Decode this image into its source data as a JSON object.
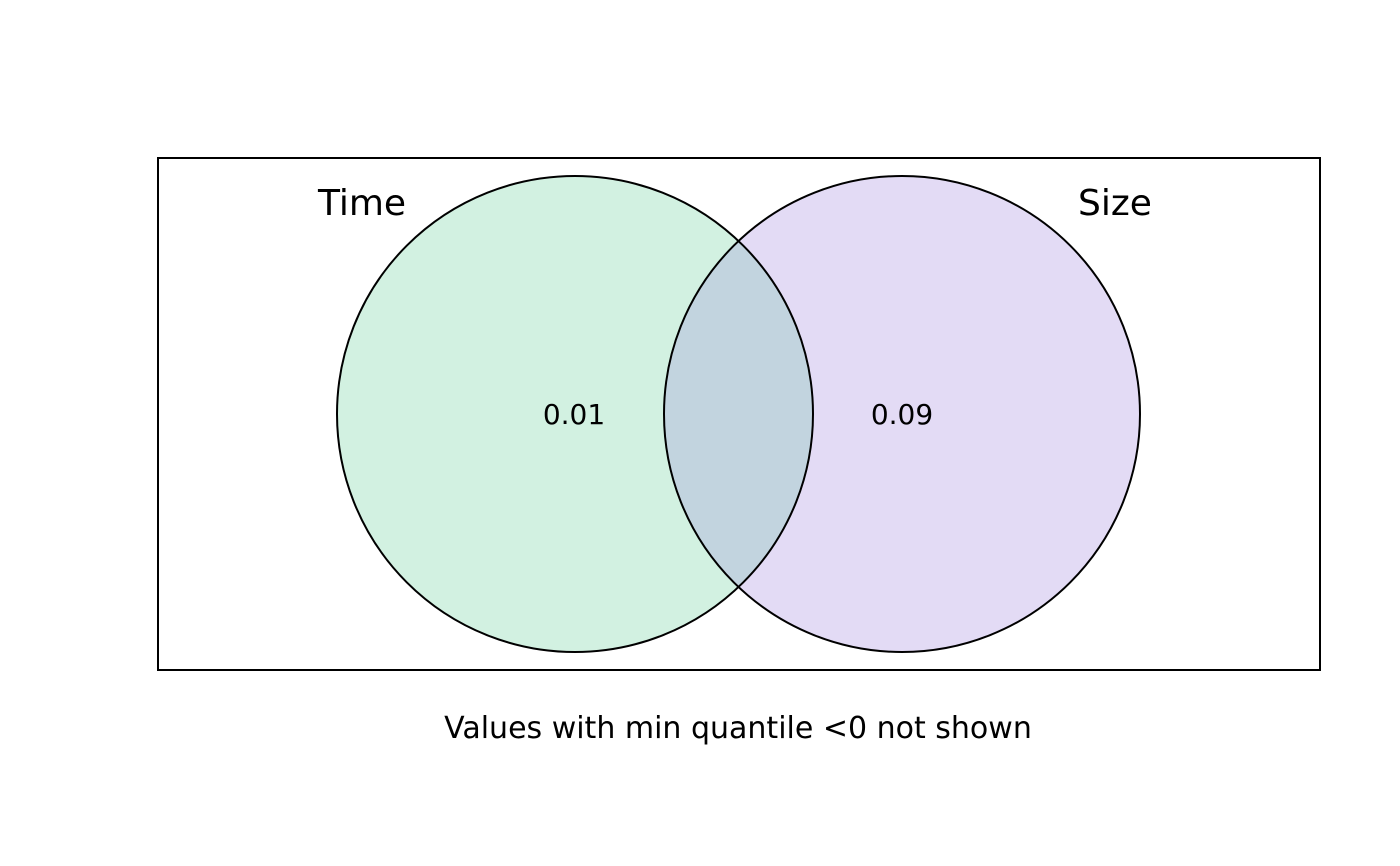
{
  "diagram": {
    "type": "venn",
    "caption": "Values with min quantile <0 not shown",
    "sets": [
      {
        "name": "Time",
        "fill": "#d2f1e1"
      },
      {
        "name": "Size",
        "fill": "#e3dbf5"
      }
    ],
    "overlap_fill": "#c2d4df",
    "regions": [
      {
        "set": "Time only",
        "value": "0.01"
      },
      {
        "set": "Size only",
        "value": "0.09"
      }
    ],
    "stroke_color": "#000000"
  }
}
